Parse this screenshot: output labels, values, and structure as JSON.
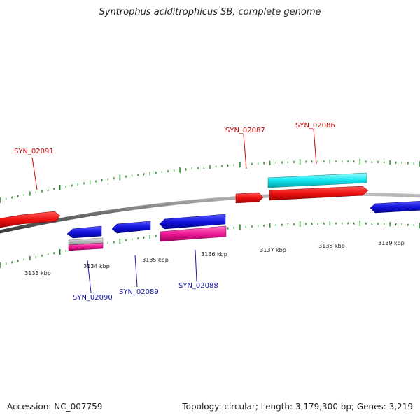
{
  "title": "Syntrophus aciditrophicus SB, complete genome",
  "footer": {
    "accession": "Accession: NC_007759",
    "summary": "Topology: circular; Length: 3,179,300 bp; Genes: 3,219"
  },
  "scale_labels": [
    "3133 kbp",
    "3134 kbp",
    "3135 kbp",
    "3136 kbp",
    "3137 kbp",
    "3138 kbp",
    "3139 kbp"
  ],
  "gene_labels": {
    "forward": [
      "SYN_02091",
      "SYN_02087",
      "SYN_02086"
    ],
    "reverse": [
      "SYN_02090",
      "SYN_02089",
      "SYN_02088"
    ]
  },
  "colors": {
    "forward_label": "#cc0000",
    "reverse_label": "#1a1aaa",
    "forward_gene": "#ee1111",
    "reverse_gene": "#1414dd",
    "cyan_gene": "#11e6ee",
    "pink_gene": "#ee1a96",
    "gray_gene": "#bdbdbd",
    "backbone": "#7a7a7a",
    "ticks": "#1f8a1f"
  }
}
